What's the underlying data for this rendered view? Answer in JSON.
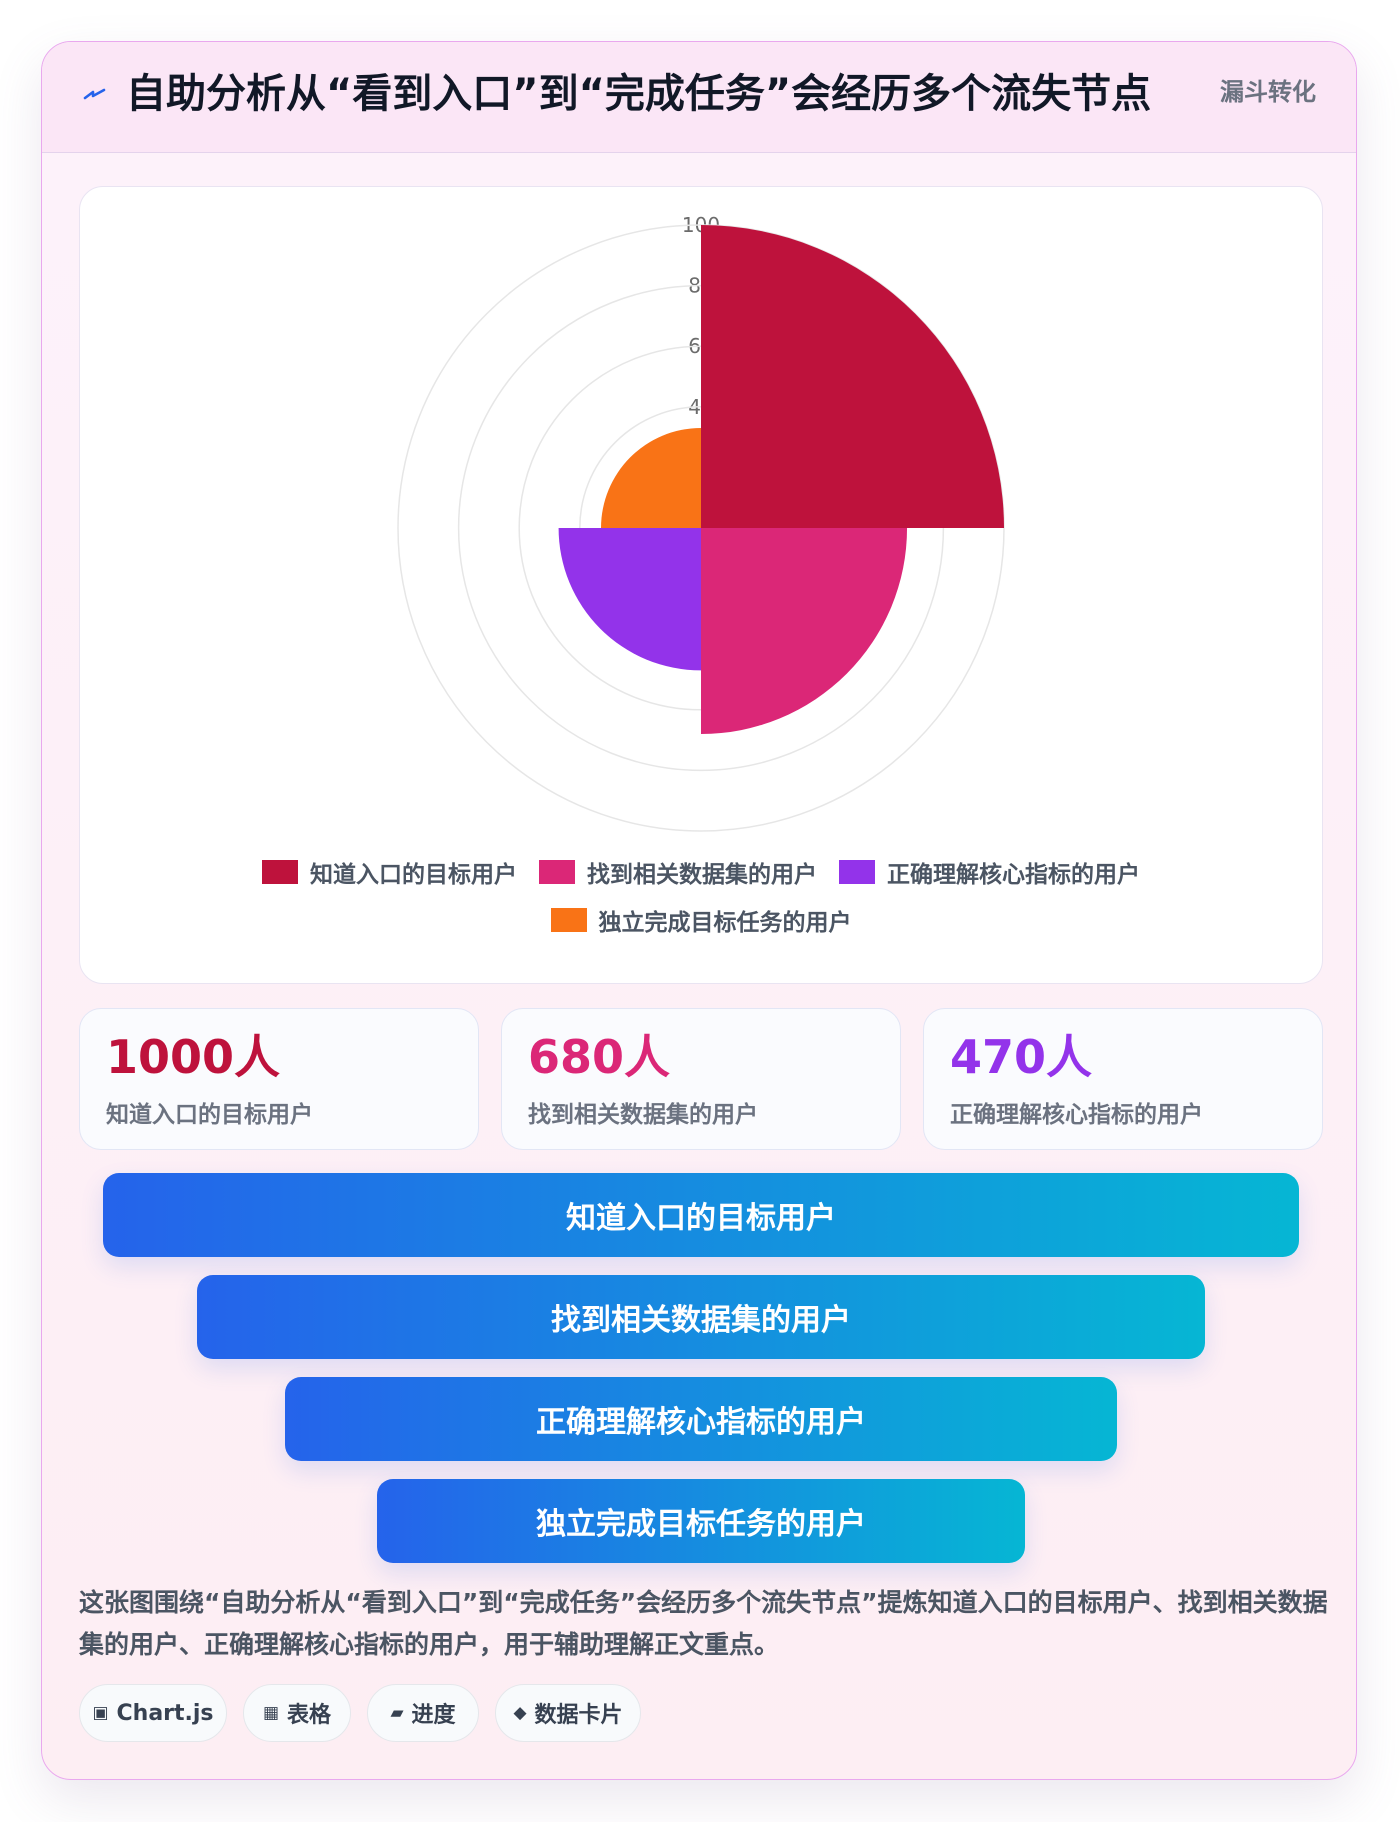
{
  "header": {
    "title": "自助分析从“看到入口”到“完成任务”会经历多个流失节点",
    "tag": "漏斗转化",
    "icon": "lightning-icon"
  },
  "chart_data": {
    "type": "polarArea",
    "radial_max": 100,
    "tick_labels": [
      "100",
      "80",
      "60",
      "40"
    ],
    "categories": [
      "知道入口的目标用户",
      "找到相关数据集的用户",
      "正确理解核心指标的用户",
      "独立完成目标任务的用户"
    ],
    "values": [
      100,
      68,
      47,
      33
    ],
    "colors": [
      "#be123c",
      "#db2777",
      "#9333ea",
      "#f97316"
    ],
    "legend_position": "bottom",
    "grid": true
  },
  "stats": [
    {
      "value": "1000人",
      "label": "知道入口的目标用户",
      "color": "#be123c"
    },
    {
      "value": "680人",
      "label": "找到相关数据集的用户",
      "color": "#db2777"
    },
    {
      "value": "470人",
      "label": "正确理解核心指标的用户",
      "color": "#9333ea"
    }
  ],
  "funnel": [
    {
      "label": "知道入口的目标用户"
    },
    {
      "label": "找到相关数据集的用户"
    },
    {
      "label": "正确理解核心指标的用户"
    },
    {
      "label": "独立完成目标任务的用户"
    }
  ],
  "summary": "这张图围绕“自助分析从“看到入口”到“完成任务”会经历多个流失节点”提炼知道入口的目标用户、找到相关数据集的用户、正确理解核心指标的用户，用于辅助理解正文重点。",
  "chips": [
    {
      "icon": "▣",
      "icon_name": "chart-icon",
      "label": "Chart.js"
    },
    {
      "icon": "▦",
      "icon_name": "table-icon",
      "label": "表格"
    },
    {
      "icon": "▰",
      "icon_name": "progress-icon",
      "label": "进度"
    },
    {
      "icon": "◆",
      "icon_name": "diamond-icon",
      "label": "数据卡片"
    }
  ]
}
